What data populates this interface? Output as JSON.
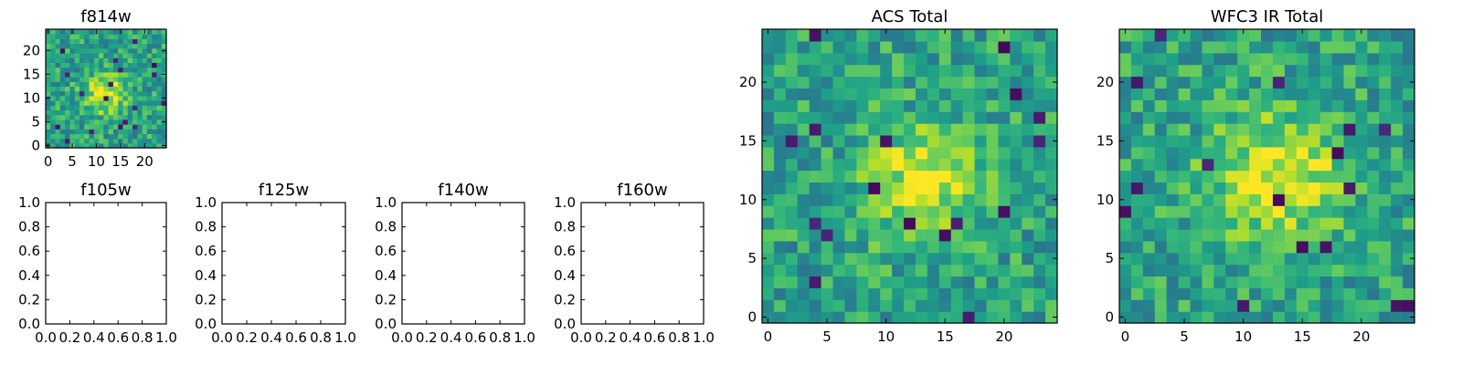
{
  "chart_data": [
    {
      "type": "heatmap",
      "title": "f814w",
      "colormap": "viridis",
      "grid_size": 25,
      "xlim": [
        0,
        24
      ],
      "ylim": [
        0,
        24
      ],
      "x_ticks": [
        0,
        5,
        10,
        15,
        20
      ],
      "y_ticks": [
        0,
        5,
        10,
        15,
        20
      ],
      "peak_center": [
        12,
        11
      ],
      "peak_width": 3.0,
      "seed": 7
    },
    {
      "type": "heatmap",
      "title": "f105w",
      "empty": true,
      "xlim": [
        0,
        1
      ],
      "ylim": [
        0,
        1
      ],
      "x_ticks": [
        "0.0",
        "0.2",
        "0.4",
        "0.6",
        "0.8",
        "1.0"
      ],
      "y_ticks": [
        "0.0",
        "0.2",
        "0.4",
        "0.6",
        "0.8",
        "1.0"
      ]
    },
    {
      "type": "heatmap",
      "title": "f125w",
      "empty": true,
      "xlim": [
        0,
        1
      ],
      "ylim": [
        0,
        1
      ],
      "x_ticks": [
        "0.0",
        "0.2",
        "0.4",
        "0.6",
        "0.8",
        "1.0"
      ],
      "y_ticks": [
        "0.0",
        "0.2",
        "0.4",
        "0.6",
        "0.8",
        "1.0"
      ]
    },
    {
      "type": "heatmap",
      "title": "f140w",
      "empty": true,
      "xlim": [
        0,
        1
      ],
      "ylim": [
        0,
        1
      ],
      "x_ticks": [
        "0.0",
        "0.2",
        "0.4",
        "0.6",
        "0.8",
        "1.0"
      ],
      "y_ticks": [
        "0.0",
        "0.2",
        "0.4",
        "0.6",
        "0.8",
        "1.0"
      ]
    },
    {
      "type": "heatmap",
      "title": "f160w",
      "empty": true,
      "xlim": [
        0,
        1
      ],
      "ylim": [
        0,
        1
      ],
      "x_ticks": [
        "0.0",
        "0.2",
        "0.4",
        "0.6",
        "0.8",
        "1.0"
      ],
      "y_ticks": [
        "0.0",
        "0.2",
        "0.4",
        "0.6",
        "0.8",
        "1.0"
      ]
    },
    {
      "type": "heatmap",
      "title": "ACS Total",
      "colormap": "viridis",
      "grid_size": 25,
      "xlim": [
        0,
        24
      ],
      "ylim": [
        0,
        24
      ],
      "x_ticks": [
        0,
        5,
        10,
        15,
        20
      ],
      "y_ticks": [
        0,
        5,
        10,
        15,
        20
      ],
      "peak_center": [
        13,
        11.5
      ],
      "peak_width": 3.2,
      "seed": 21
    },
    {
      "type": "heatmap",
      "title": "WFC3 IR Total",
      "colormap": "viridis",
      "grid_size": 25,
      "xlim": [
        0,
        24
      ],
      "ylim": [
        0,
        24
      ],
      "x_ticks": [
        0,
        5,
        10,
        15,
        20
      ],
      "y_ticks": [
        0,
        5,
        10,
        15,
        20
      ],
      "peak_center": [
        13,
        12
      ],
      "peak_width": 4.0,
      "seed": 43
    }
  ]
}
